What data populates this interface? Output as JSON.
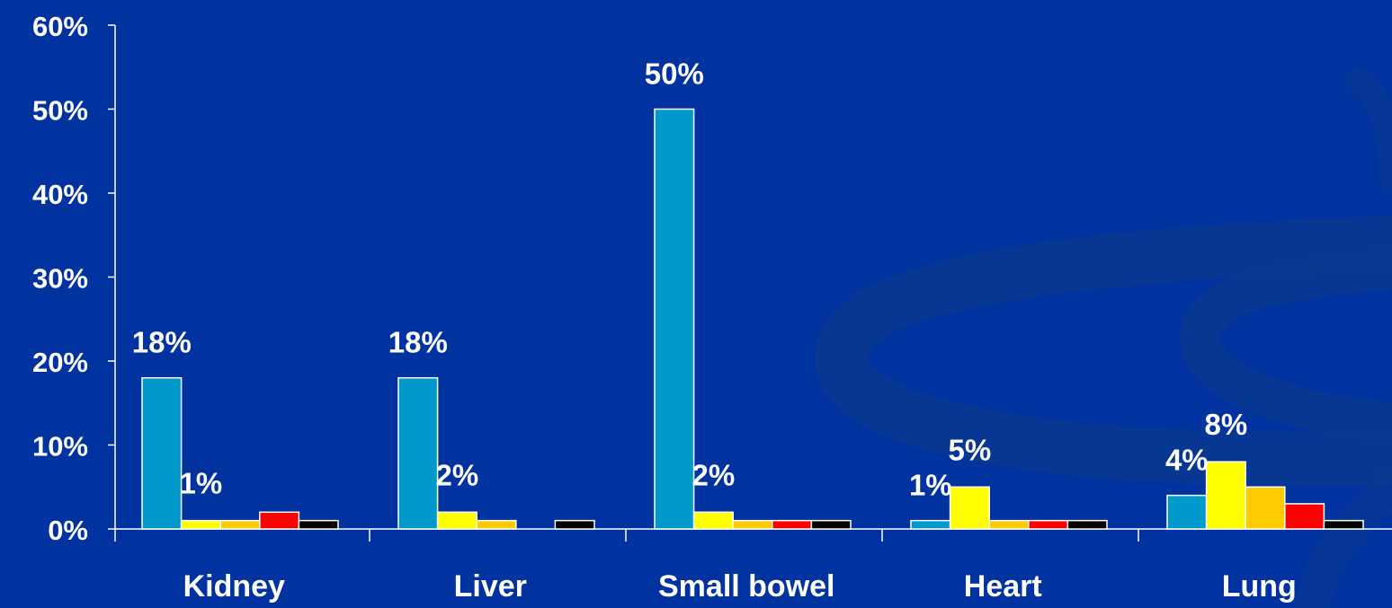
{
  "chart_data": {
    "type": "bar",
    "categories": [
      "Kidney",
      "Liver",
      "Small bowel",
      "Heart",
      "Lung"
    ],
    "series": [
      {
        "values": [
          18,
          18,
          50,
          1,
          4
        ]
      },
      {
        "values": [
          1,
          2,
          2,
          5,
          8
        ]
      },
      {
        "values": [
          1,
          1,
          1,
          1,
          5
        ]
      },
      {
        "values": [
          2,
          null,
          1,
          1,
          3
        ]
      },
      {
        "values": [
          1,
          1,
          1,
          1,
          1
        ]
      }
    ],
    "series_colors": [
      "#0099cc",
      "#ffff00",
      "#ffcc00",
      "#ff0000",
      "#000000"
    ],
    "data_labels": [
      {
        "category": 0,
        "series": 0,
        "text": "18%"
      },
      {
        "category": 0,
        "series": 1,
        "text": "1%"
      },
      {
        "category": 1,
        "series": 0,
        "text": "18%"
      },
      {
        "category": 1,
        "series": 1,
        "text": "2%"
      },
      {
        "category": 2,
        "series": 0,
        "text": "50%"
      },
      {
        "category": 2,
        "series": 1,
        "text": "2%"
      },
      {
        "category": 3,
        "series": 0,
        "text": "1%"
      },
      {
        "category": 3,
        "series": 1,
        "text": "5%"
      },
      {
        "category": 4,
        "series": 0,
        "text": "4%"
      },
      {
        "category": 4,
        "series": 1,
        "text": "8%"
      }
    ],
    "y_ticks": [
      "0%",
      "10%",
      "20%",
      "30%",
      "40%",
      "50%",
      "60%"
    ],
    "ylim": [
      0,
      60
    ],
    "grid": false,
    "legend": "none",
    "background_color": "#0033a0",
    "text_color": "#ffffff"
  }
}
